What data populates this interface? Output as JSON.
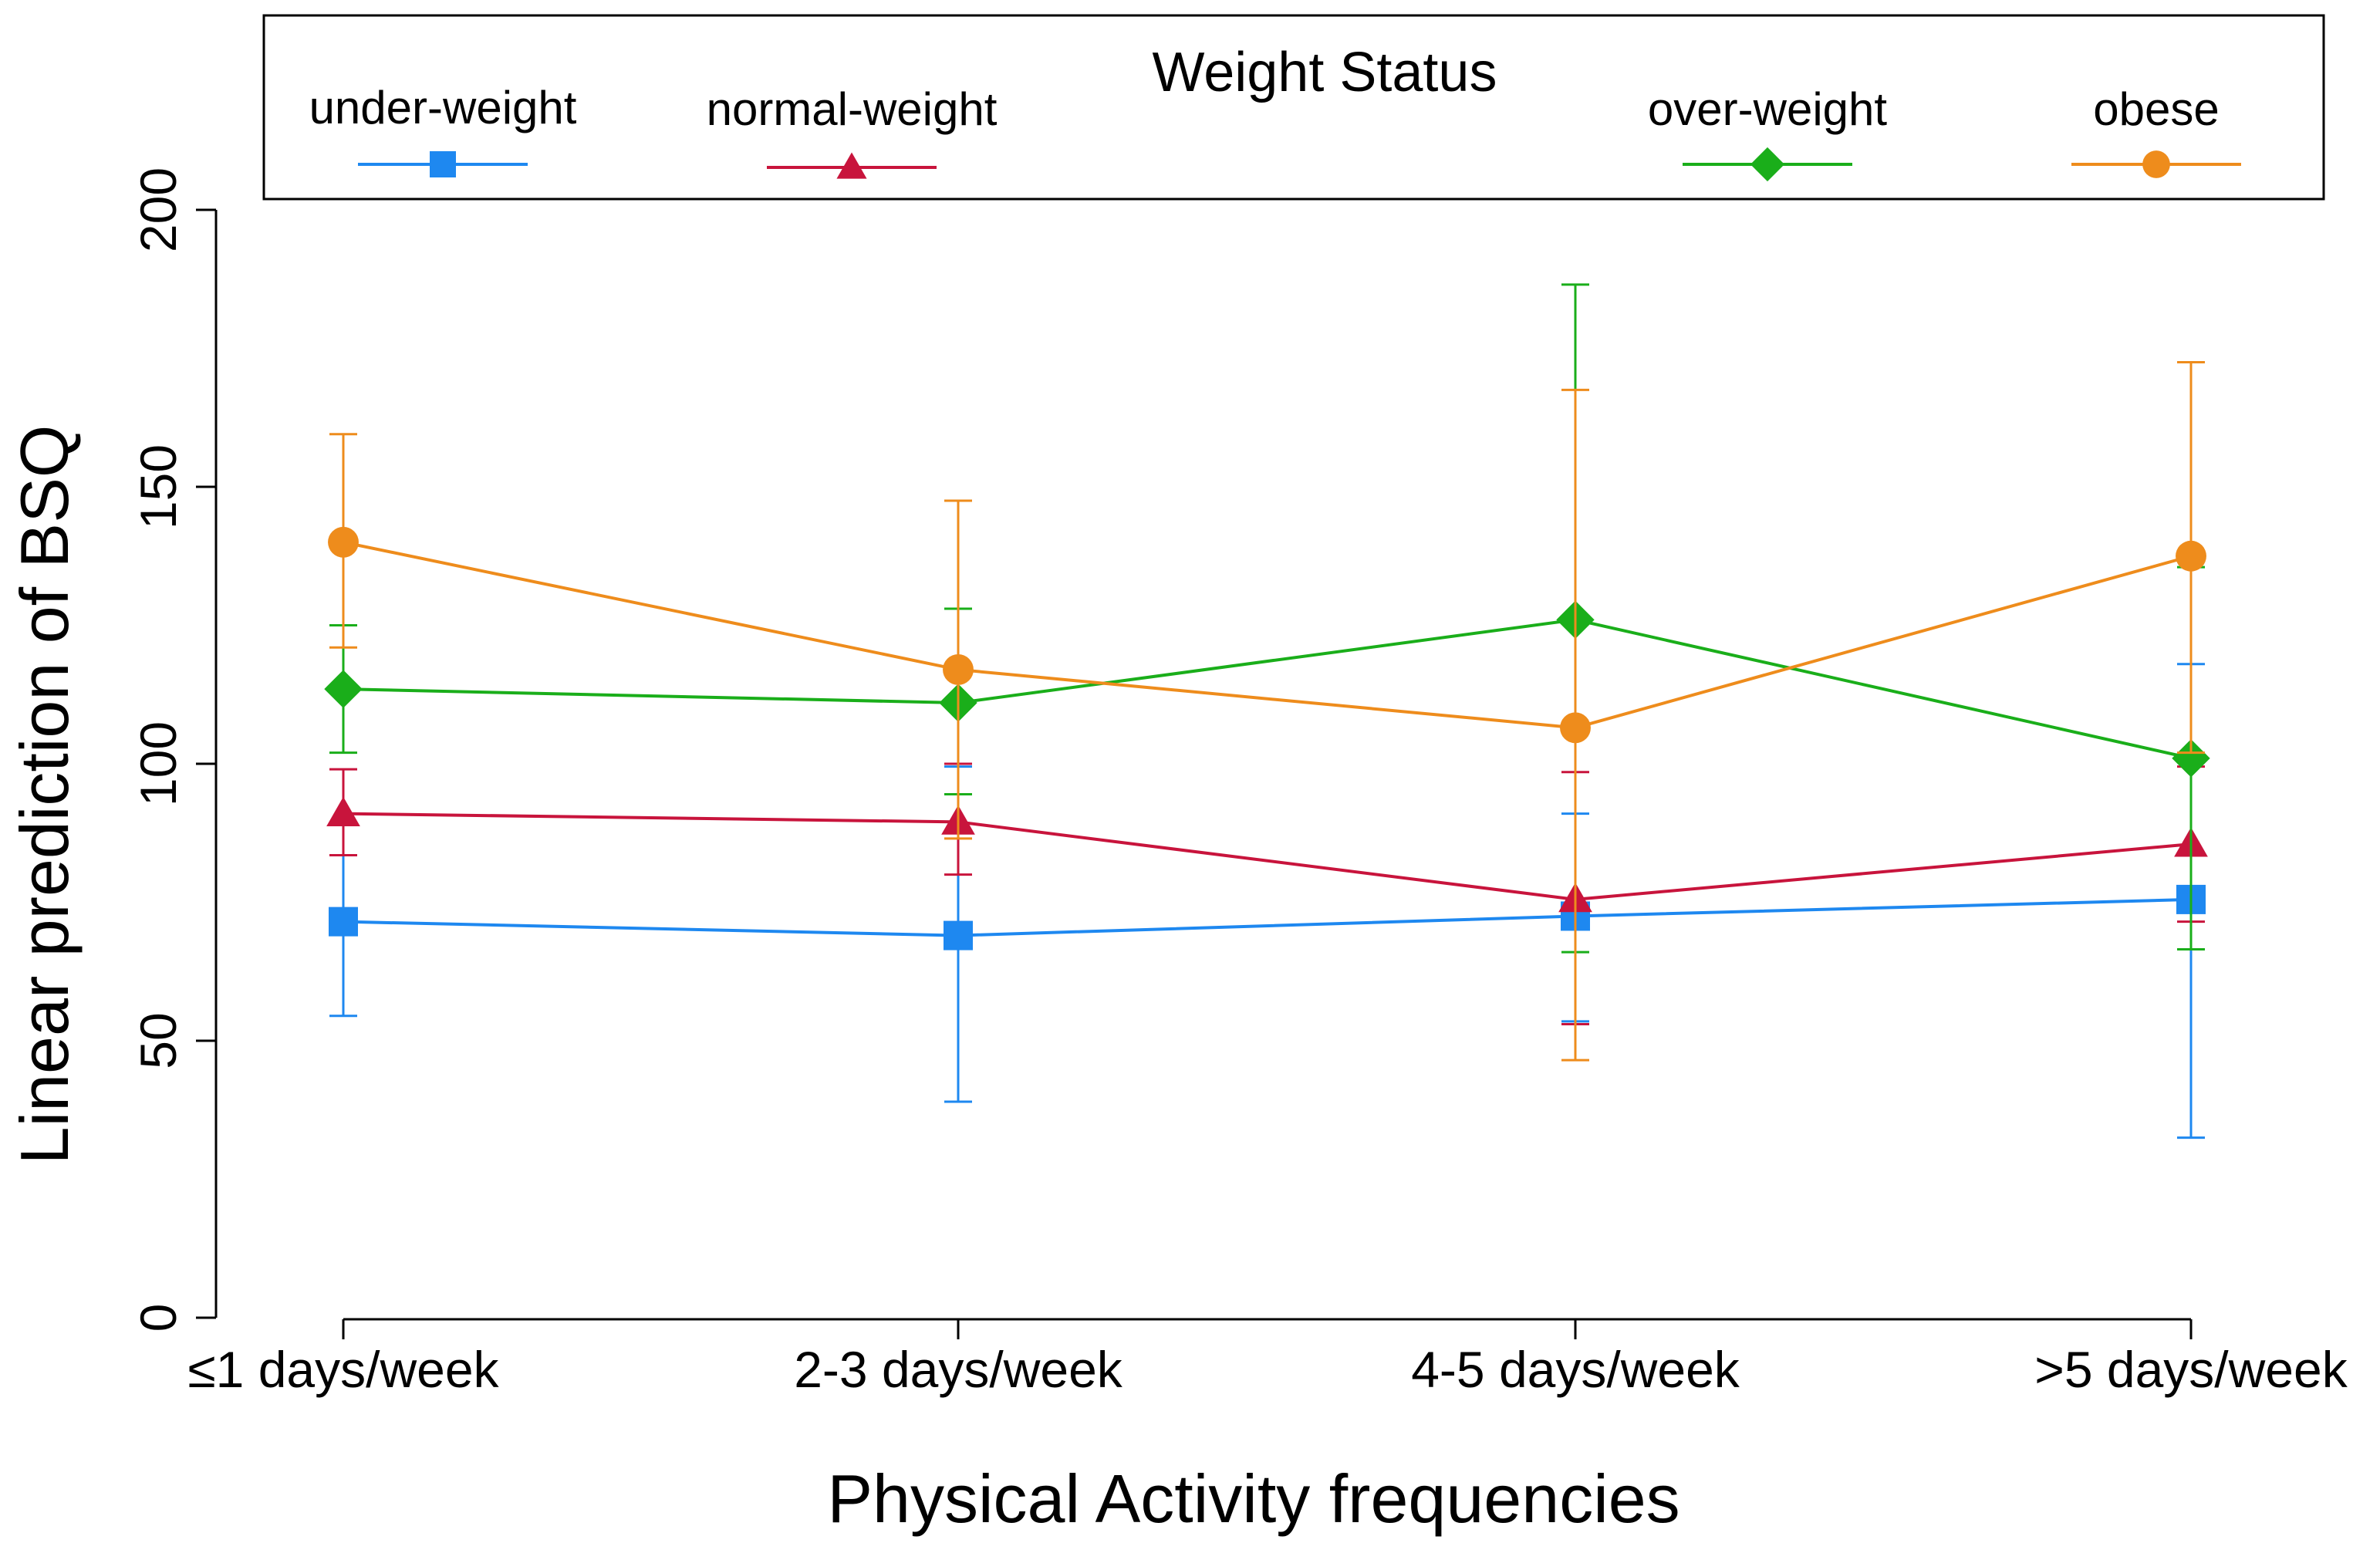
{
  "chart_data": {
    "type": "line",
    "title": "",
    "xlabel": "Physical Activity frequencies",
    "ylabel": "Linear prediction of BSQ",
    "categories": [
      "≤1 days/week",
      "2-3 days/week",
      "4-5 days/week",
      ">5 days/week"
    ],
    "ylim": [
      0,
      200
    ],
    "yticks": [
      0,
      50,
      100,
      150,
      200
    ],
    "grid": false,
    "legend": {
      "title": "Weight Status",
      "placement": "top"
    },
    "series": [
      {
        "name": "under-weight",
        "color": "#1e88f0",
        "marker": "square",
        "values": [
          71.5,
          69,
          72.5,
          75.5
        ],
        "ci_low": [
          54.5,
          39,
          53.5,
          32.5
        ],
        "ci_high": [
          89,
          99.5,
          91,
          118
        ]
      },
      {
        "name": "normal-weight",
        "color": "#c8143c",
        "marker": "triangle",
        "values": [
          91,
          89.5,
          75.5,
          85.5
        ],
        "ci_low": [
          83.5,
          80,
          53,
          71.5
        ],
        "ci_high": [
          99,
          100,
          98.5,
          99.5
        ]
      },
      {
        "name": "over-weight",
        "color": "#1aae1a",
        "marker": "diamond",
        "values": [
          113.5,
          111,
          126,
          101
        ],
        "ci_low": [
          102,
          94.5,
          66,
          66.5
        ],
        "ci_high": [
          125,
          128,
          186.5,
          135.5
        ]
      },
      {
        "name": "obese",
        "color": "#ee8c1c",
        "marker": "circle",
        "values": [
          140,
          117,
          106.5,
          137.5
        ],
        "ci_low": [
          121,
          86.5,
          46.5,
          102
        ],
        "ci_high": [
          159.5,
          147.5,
          167.5,
          172.5
        ]
      }
    ]
  }
}
